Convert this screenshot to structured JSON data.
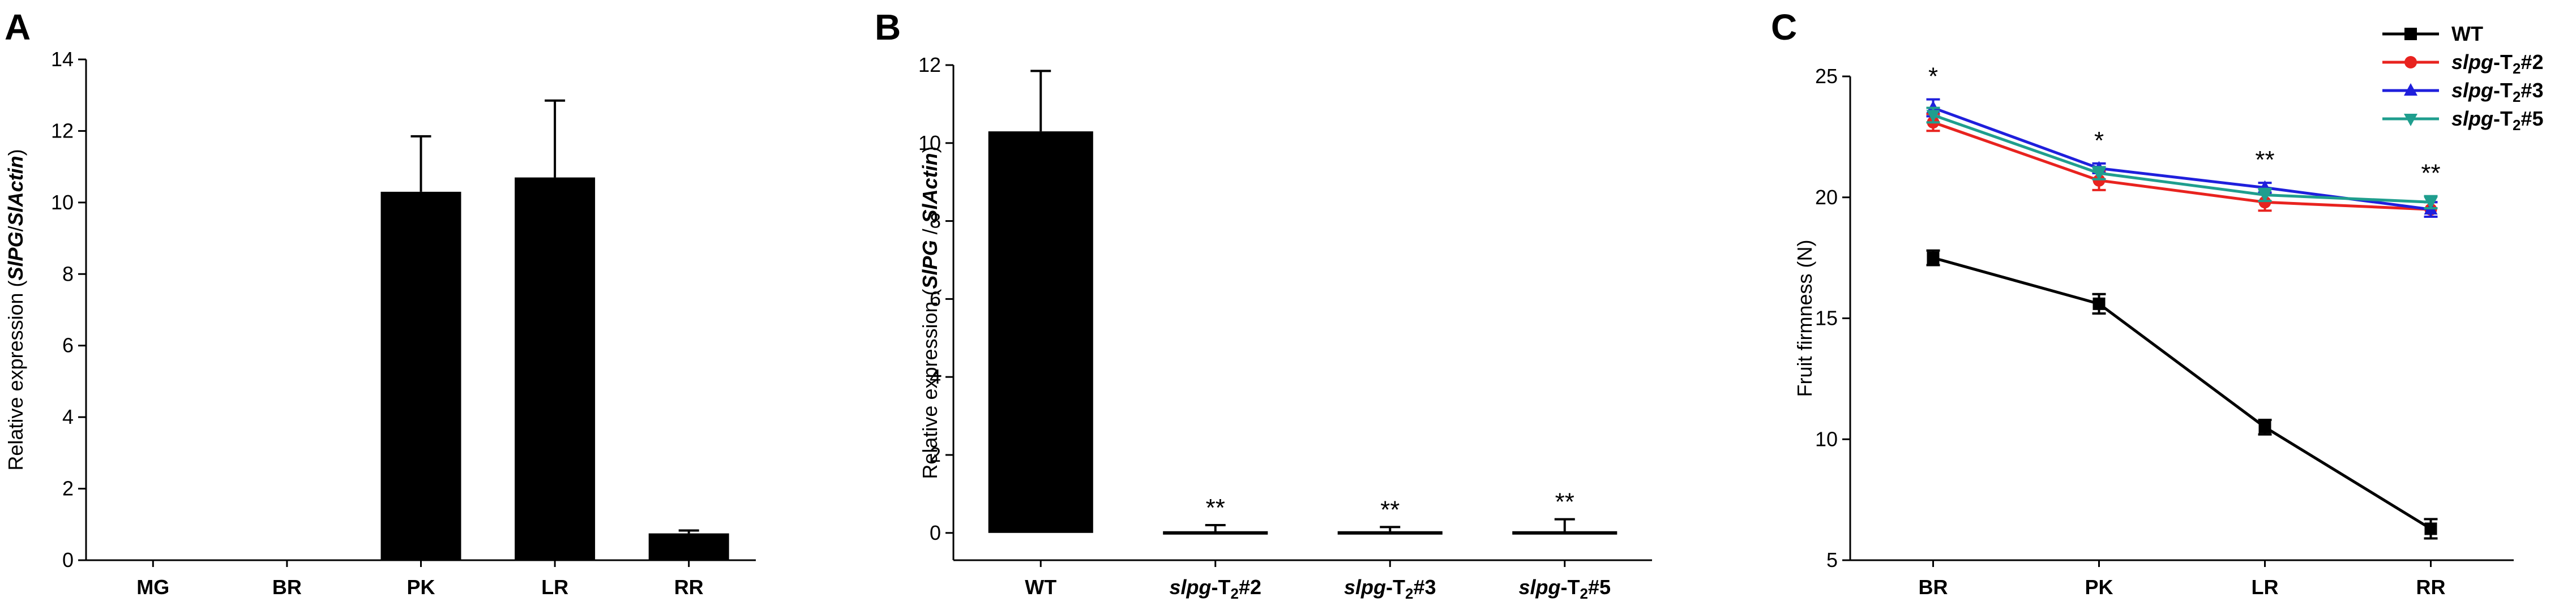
{
  "chart_data": [
    {
      "panel_label": "A",
      "type": "bar",
      "ylabel_parts": [
        {
          "t": "Relative expression ("
        },
        {
          "t": "SlPG",
          "b": true,
          "i": true
        },
        {
          "t": "/"
        },
        {
          "t": "SlActin",
          "b": true,
          "i": true
        },
        {
          "t": ")"
        }
      ],
      "ylim": [
        0,
        14
      ],
      "yticks": [
        "0",
        "2",
        "4",
        "6",
        "8",
        "10",
        "12",
        "14"
      ],
      "categories": [
        [
          {
            "t": "MG"
          }
        ],
        [
          {
            "t": "BR"
          }
        ],
        [
          {
            "t": "PK"
          }
        ],
        [
          {
            "t": "LR"
          }
        ],
        [
          {
            "t": "RR"
          }
        ]
      ],
      "values": [
        0,
        0,
        10.3,
        10.7,
        0.75
      ],
      "errors": [
        0,
        0,
        1.55,
        2.15,
        0.08
      ],
      "annotations": [
        "",
        "",
        "",
        "",
        ""
      ]
    },
    {
      "panel_label": "B",
      "type": "bar",
      "ylabel_parts": [
        {
          "t": "Relative expression ("
        },
        {
          "t": "SlPG",
          "b": true,
          "i": true
        },
        {
          "t": " / "
        },
        {
          "t": "SlActin",
          "b": true,
          "i": true
        },
        {
          "t": ")"
        }
      ],
      "ylim": [
        -0.7,
        12
      ],
      "yticks": [
        "0",
        "2",
        "4",
        "6",
        "8",
        "10",
        "12"
      ],
      "categories": [
        [
          {
            "t": "WT"
          }
        ],
        [
          {
            "t": "slpg",
            "i": true
          },
          {
            "t": "-T"
          },
          {
            "t": "2",
            "sub": true
          },
          {
            "t": "#2"
          }
        ],
        [
          {
            "t": "slpg",
            "i": true
          },
          {
            "t": "-T"
          },
          {
            "t": "2",
            "sub": true
          },
          {
            "t": "#3"
          }
        ],
        [
          {
            "t": "slpg",
            "i": true
          },
          {
            "t": "-T"
          },
          {
            "t": "2",
            "sub": true
          },
          {
            "t": "#5"
          }
        ]
      ],
      "values": [
        10.3,
        0,
        0,
        0
      ],
      "errors": [
        1.55,
        0.2,
        0.15,
        0.35
      ],
      "annotations": [
        "",
        "**",
        "**",
        "**"
      ]
    },
    {
      "panel_label": "C",
      "type": "line",
      "ylabel": "Fruit firmness (N)",
      "ylim": [
        5,
        25
      ],
      "yticks": [
        "5",
        "10",
        "15",
        "20",
        "25"
      ],
      "categories": [
        "BR",
        "PK",
        "LR",
        "RR"
      ],
      "series": [
        {
          "name_parts": [
            {
              "t": "WT"
            }
          ],
          "color": "#000000",
          "marker": "square",
          "values": [
            17.5,
            15.6,
            10.5,
            6.3
          ],
          "errors": [
            0.3,
            0.4,
            0.3,
            0.4
          ]
        },
        {
          "name_parts": [
            {
              "t": "slpg",
              "i": true
            },
            {
              "t": "-T"
            },
            {
              "t": "2",
              "sub": true
            },
            {
              "t": "#2"
            }
          ],
          "color": "#e8231f",
          "marker": "circle",
          "values": [
            23.1,
            20.7,
            19.8,
            19.5
          ],
          "errors": [
            0.35,
            0.4,
            0.35,
            0.3
          ]
        },
        {
          "name_parts": [
            {
              "t": "slpg",
              "i": true
            },
            {
              "t": "-T"
            },
            {
              "t": "2",
              "sub": true
            },
            {
              "t": "#3"
            }
          ],
          "color": "#1f1fdc",
          "marker": "triangle-up",
          "values": [
            23.7,
            21.2,
            20.4,
            19.5
          ],
          "errors": [
            0.35,
            0.2,
            0.2,
            0.3
          ]
        },
        {
          "name_parts": [
            {
              "t": "slpg",
              "i": true
            },
            {
              "t": "-T"
            },
            {
              "t": "2",
              "sub": true
            },
            {
              "t": "#5"
            }
          ],
          "color": "#1f9e8e",
          "marker": "triangle-down",
          "values": [
            23.4,
            21.0,
            20.1,
            19.8
          ],
          "errors": [
            0.3,
            0.25,
            0.25,
            0.25
          ]
        }
      ],
      "annotations": [
        "*",
        "*",
        "**",
        "**"
      ],
      "legend": "top-right"
    }
  ]
}
